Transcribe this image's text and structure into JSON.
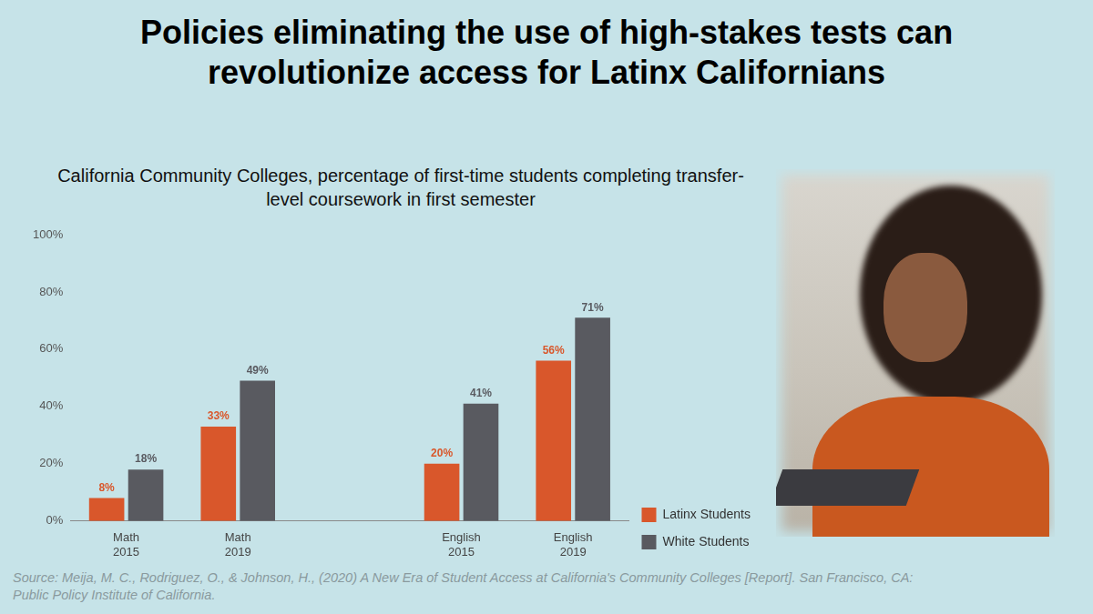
{
  "chart_data": {
    "type": "bar",
    "title": "Policies eliminating the use of high-stakes tests can revolutionize access for Latinx Californians",
    "subtitle": "California Community Colleges, percentage of first-time students completing transfer-level coursework in first semester",
    "source": "Source: Meija, M. C., Rodriguez, O., & Johnson, H., (2020) A New Era of Student Access at California's Community Colleges [Report]. San Francisco, CA: Public Policy Institute of California.",
    "categories": [
      "Math 2015",
      "Math 2019",
      null,
      "English 2015",
      "English 2019"
    ],
    "series": [
      {
        "name": "Latinx Students",
        "color": "#d9572b",
        "values": [
          8,
          33,
          null,
          20,
          56
        ],
        "value_labels": [
          "8%",
          "33%",
          null,
          "20%",
          "56%"
        ]
      },
      {
        "name": "White Students",
        "color": "#595a60",
        "values": [
          18,
          49,
          null,
          41,
          71
        ],
        "value_labels": [
          "18%",
          "49%",
          null,
          "41%",
          "71%"
        ]
      }
    ],
    "ylim": [
      0,
      100
    ],
    "yticks": [
      {
        "value": 0,
        "label": "0%"
      },
      {
        "value": 20,
        "label": "20%"
      },
      {
        "value": 40,
        "label": "40%"
      },
      {
        "value": 60,
        "label": "60%"
      },
      {
        "value": 80,
        "label": "80%"
      },
      {
        "value": 100,
        "label": "100%"
      }
    ],
    "grid": false,
    "legend": "right",
    "data_labels": true
  }
}
